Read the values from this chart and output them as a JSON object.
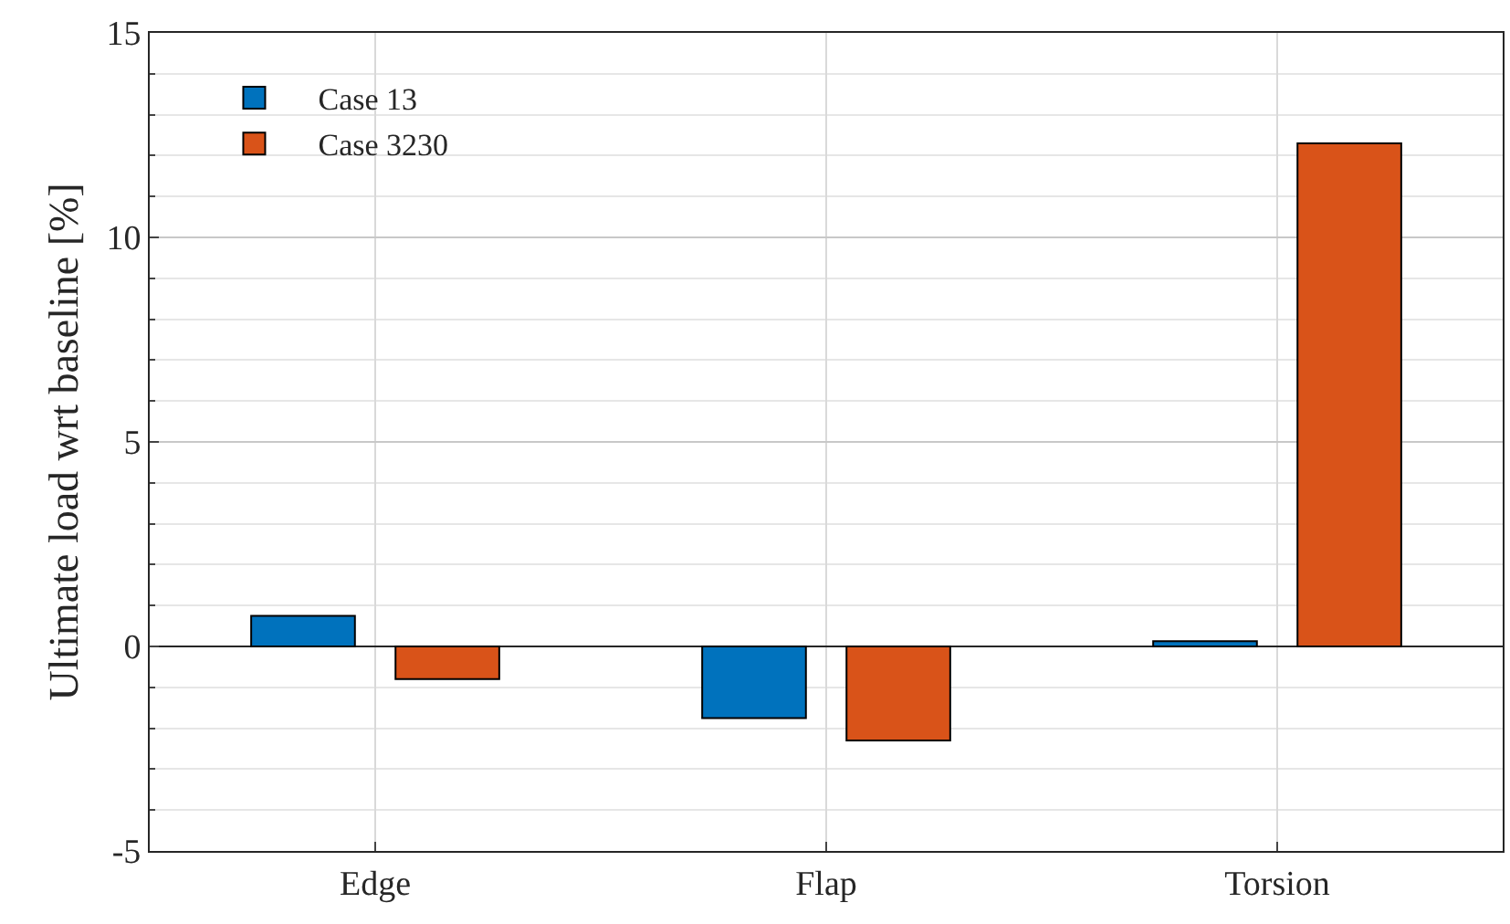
{
  "chart_data": {
    "type": "bar",
    "ylabel": "Ultimate load wrt baseline [%]",
    "categories": [
      "Edge",
      "Flap",
      "Torsion"
    ],
    "series": [
      {
        "name": "Case 13",
        "color": "#0072bd",
        "values": [
          0.75,
          -1.75,
          0.13
        ]
      },
      {
        "name": "Case 3230",
        "color": "#d95319",
        "values": [
          -0.8,
          -2.3,
          12.3
        ]
      }
    ],
    "ylim": [
      -5,
      15
    ],
    "yticks": [
      -5,
      0,
      5,
      10,
      15
    ],
    "grid": true,
    "legend": "top left"
  }
}
